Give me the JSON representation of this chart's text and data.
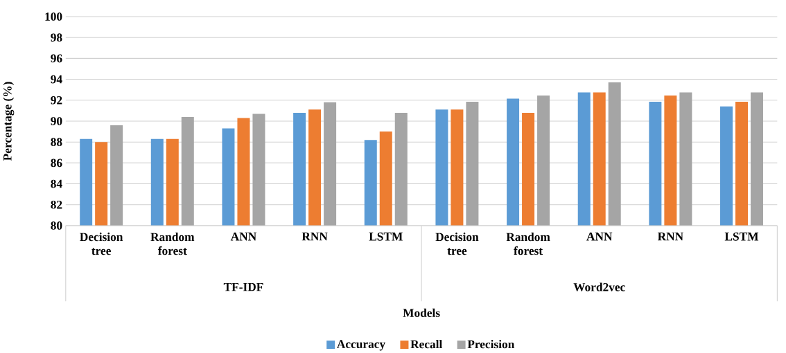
{
  "chart_data": {
    "type": "bar",
    "xlabel": "Models",
    "ylabel": "Percentage (%)",
    "categories": [
      "Decision tree",
      "Random forest",
      "ANN",
      "RNN",
      "LSTM",
      "Decision tree",
      "Random forest",
      "ANN",
      "RNN",
      "LSTM"
    ],
    "annotations": [
      "TF-IDF",
      "Word2vec"
    ],
    "series": [
      {
        "name": "Accuracy",
        "color": "#5b9bd5",
        "values": [
          88.3,
          88.3,
          89.3,
          90.8,
          88.2,
          91.1,
          92.15,
          92.75,
          91.85,
          91.4
        ]
      },
      {
        "name": "Recall",
        "color": "#ed7d31",
        "values": [
          88.0,
          88.3,
          90.3,
          91.1,
          89.0,
          91.1,
          90.8,
          92.75,
          92.45,
          91.85
        ]
      },
      {
        "name": "Precision",
        "color": "#a5a5a5",
        "values": [
          89.6,
          90.4,
          90.7,
          91.8,
          90.8,
          91.85,
          92.45,
          93.7,
          92.75,
          92.75
        ]
      }
    ],
    "ylim": [
      80,
      100
    ],
    "yticks": [
      80,
      82,
      84,
      86,
      88,
      90,
      92,
      94,
      96,
      98,
      100
    ],
    "grid": "y",
    "legend": "bottom"
  }
}
